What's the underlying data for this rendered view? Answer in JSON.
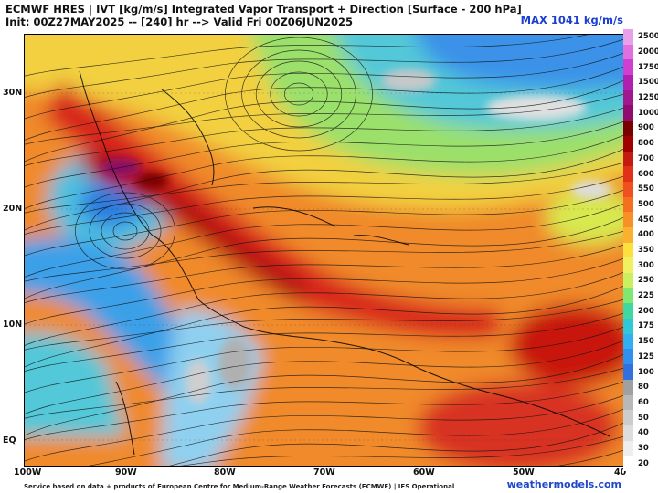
{
  "header": {
    "title": "ECMWF HRES | IVT [kg/m/s] Integrated Vapor Transport + Direction [Surface - 200 hPa]",
    "init": "Init: 00Z27MAY2025 -- [240] hr --> Valid Fri 00Z06JUN2025",
    "max_label": "MAX 1041 kg/m/s"
  },
  "lat_labels": [
    "30N",
    "20N",
    "10N",
    "EQ"
  ],
  "lon_labels": [
    "100W",
    "90W",
    "80W",
    "70W",
    "60W",
    "50W",
    "40"
  ],
  "colorbar": {
    "labels": [
      "2500",
      "2000",
      "1750",
      "1500",
      "1250",
      "1000",
      "900",
      "800",
      "700",
      "600",
      "550",
      "500",
      "450",
      "400",
      "350",
      "300",
      "250",
      "225",
      "200",
      "175",
      "150",
      "125",
      "100",
      "80",
      "60",
      "50",
      "40",
      "30",
      "20"
    ],
    "colors": [
      "#e8a0e8",
      "#e070e0",
      "#d040d0",
      "#b020b0",
      "#a01890",
      "#900a70",
      "#7a0000",
      "#a00000",
      "#c41a10",
      "#e03018",
      "#f05020",
      "#f47020",
      "#f89028",
      "#fcb030",
      "#fce040",
      "#f0f060",
      "#c8f060",
      "#80e870",
      "#40d8a0",
      "#30c8d8",
      "#30b0f0",
      "#3090f0",
      "#3070e0",
      "#a0a0a0",
      "#b8b8b8",
      "#cccccc",
      "#dddddd",
      "#eeeeee",
      "#ffffff"
    ]
  },
  "footer": {
    "credit": "Service based on data + products of European Centre for Medium-Range Weather Forecasts (ECMWF) | IFS Operational",
    "brand": "weathermodels.com"
  }
}
